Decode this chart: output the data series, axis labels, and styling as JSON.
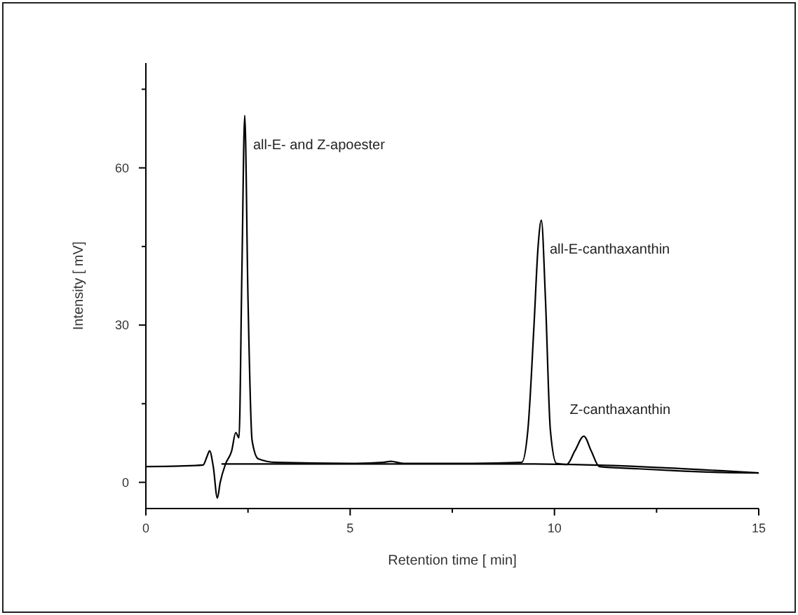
{
  "chart_data": {
    "type": "line",
    "xlabel": "Retention time [ min]",
    "ylabel": "Intensity [ mV]",
    "xlim": [
      0,
      15
    ],
    "ylim": [
      -5,
      80
    ],
    "xticks": [
      0,
      {
        "value": 2.5,
        "label": null
      },
      5,
      {
        "value": 7.5,
        "label": null
      },
      10,
      {
        "value": 12.5,
        "label": null
      },
      15
    ],
    "yticks": [
      0,
      {
        "value": 15,
        "label": null
      },
      30,
      {
        "value": 45,
        "label": null
      },
      60,
      {
        "value": 75,
        "label": null
      }
    ],
    "grid": false,
    "line_style": "solid",
    "series": [
      {
        "color": "#000000",
        "x": [
          0,
          0.8,
          1.4,
          1.5,
          1.56,
          1.65,
          1.75,
          1.82,
          1.95,
          2.1,
          2.2,
          2.28,
          2.35,
          2.42,
          2.5,
          2.6,
          2.75,
          3.2,
          5,
          5.8,
          6,
          6.3,
          8,
          9.2,
          9.35,
          9.5,
          9.6,
          9.68,
          9.78,
          9.9,
          10.05,
          10.3,
          10.5,
          10.72,
          10.9,
          11.1,
          12,
          13,
          14,
          15
        ],
        "values": [
          3,
          3.1,
          3.3,
          5,
          6,
          3,
          -3,
          0,
          3.5,
          6,
          9.5,
          8.5,
          40,
          70,
          35,
          8,
          4.5,
          3.8,
          3.6,
          3.8,
          4,
          3.6,
          3.6,
          3.8,
          10,
          30,
          45,
          50,
          35,
          10,
          3.6,
          3.4,
          6,
          8.8,
          6,
          3,
          2.6,
          2.2,
          1.9,
          1.8
        ]
      },
      {
        "color": "#000000",
        "x": [
          1.85,
          9.3,
          15
        ],
        "values": [
          3.5,
          3.5,
          1.8
        ]
      }
    ],
    "annotations": [
      {
        "text": "all-E- and Z-apoester",
        "x": 2.42,
        "y": 70
      },
      {
        "text": "all-E-canthaxanthin",
        "x": 9.68,
        "y": 50
      },
      {
        "text": "Z-canthaxanthin",
        "x": 10.72,
        "y": 8.8
      }
    ]
  }
}
